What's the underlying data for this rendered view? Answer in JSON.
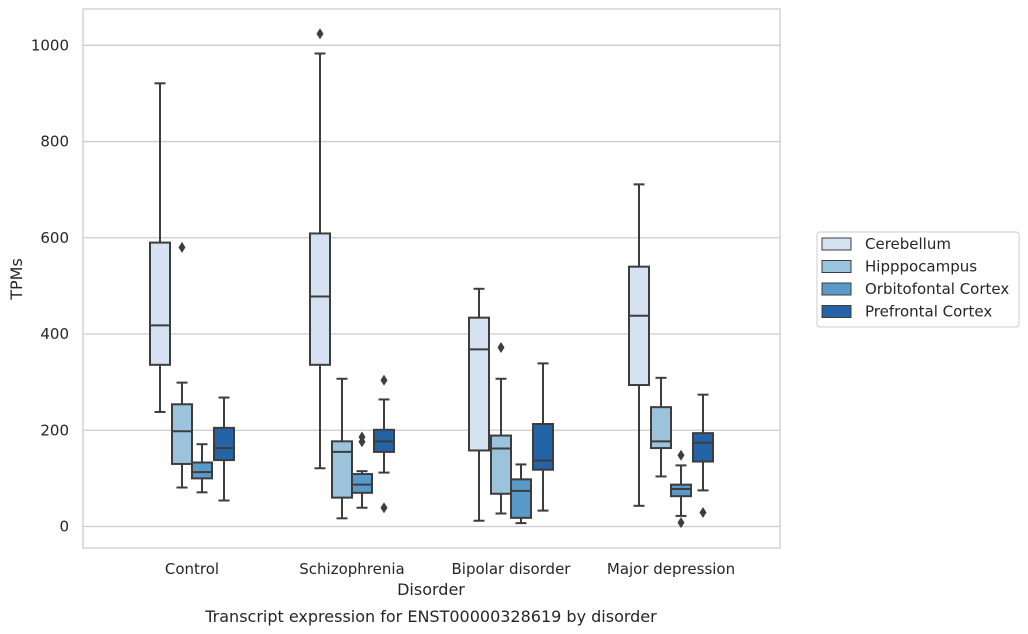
{
  "chart_data": {
    "type": "box",
    "xlabel": "Disorder",
    "ylabel": "TPMs",
    "caption": "Transcript expression for ENST00000328619 by disorder",
    "ylim": [
      -40,
      1075
    ],
    "yticks": [
      0,
      200,
      400,
      600,
      800,
      1000
    ],
    "grid": "horizontal",
    "legend_position": "right",
    "categories": [
      "Control",
      "Schizophrenia",
      "Bipolar disorder",
      "Major depression"
    ],
    "series": [
      {
        "name": "Cerebellum",
        "color": "#d4e2f2",
        "boxes": [
          {
            "whisker_low": 238,
            "q1": 336,
            "median": 418,
            "q3": 590,
            "whisker_high": 921,
            "outliers": []
          },
          {
            "whisker_low": 121,
            "q1": 336,
            "median": 478,
            "q3": 609,
            "whisker_high": 983,
            "outliers": [
              1024
            ]
          },
          {
            "whisker_low": 12,
            "q1": 158,
            "median": 368,
            "q3": 434,
            "whisker_high": 494,
            "outliers": []
          },
          {
            "whisker_low": 43,
            "q1": 294,
            "median": 438,
            "q3": 540,
            "whisker_high": 711,
            "outliers": []
          }
        ]
      },
      {
        "name": "Hipppocampus",
        "color": "#9cc3dc",
        "boxes": [
          {
            "whisker_low": 81,
            "q1": 130,
            "median": 198,
            "q3": 254,
            "whisker_high": 299,
            "outliers": [
              580
            ]
          },
          {
            "whisker_low": 17,
            "q1": 60,
            "median": 155,
            "q3": 177,
            "whisker_high": 307,
            "outliers": []
          },
          {
            "whisker_low": 27,
            "q1": 68,
            "median": 162,
            "q3": 189,
            "whisker_high": 307,
            "outliers": [
              372
            ]
          },
          {
            "whisker_low": 104,
            "q1": 163,
            "median": 177,
            "q3": 248,
            "whisker_high": 309,
            "outliers": []
          }
        ]
      },
      {
        "name": "Orbitofontal Cortex",
        "color": "#5a9ac9",
        "boxes": [
          {
            "whisker_low": 71,
            "q1": 100,
            "median": 113,
            "q3": 133,
            "whisker_high": 171,
            "outliers": []
          },
          {
            "whisker_low": 39,
            "q1": 70,
            "median": 87,
            "q3": 109,
            "whisker_high": 115,
            "outliers": [
              186,
              176
            ]
          },
          {
            "whisker_low": 7,
            "q1": 18,
            "median": 74,
            "q3": 98,
            "whisker_high": 129,
            "outliers": []
          },
          {
            "whisker_low": 22,
            "q1": 63,
            "median": 78,
            "q3": 87,
            "whisker_high": 127,
            "outliers": [
              148,
              8
            ]
          }
        ]
      },
      {
        "name": "Prefrontal Cortex",
        "color": "#2363a6",
        "boxes": [
          {
            "whisker_low": 54,
            "q1": 138,
            "median": 163,
            "q3": 205,
            "whisker_high": 268,
            "outliers": []
          },
          {
            "whisker_low": 112,
            "q1": 155,
            "median": 177,
            "q3": 201,
            "whisker_high": 264,
            "outliers": [
              304,
              39
            ]
          },
          {
            "whisker_low": 33,
            "q1": 118,
            "median": 137,
            "q3": 213,
            "whisker_high": 339,
            "outliers": []
          },
          {
            "whisker_low": 75,
            "q1": 135,
            "median": 174,
            "q3": 194,
            "whisker_high": 274,
            "outliers": [
              29
            ]
          }
        ]
      }
    ]
  }
}
